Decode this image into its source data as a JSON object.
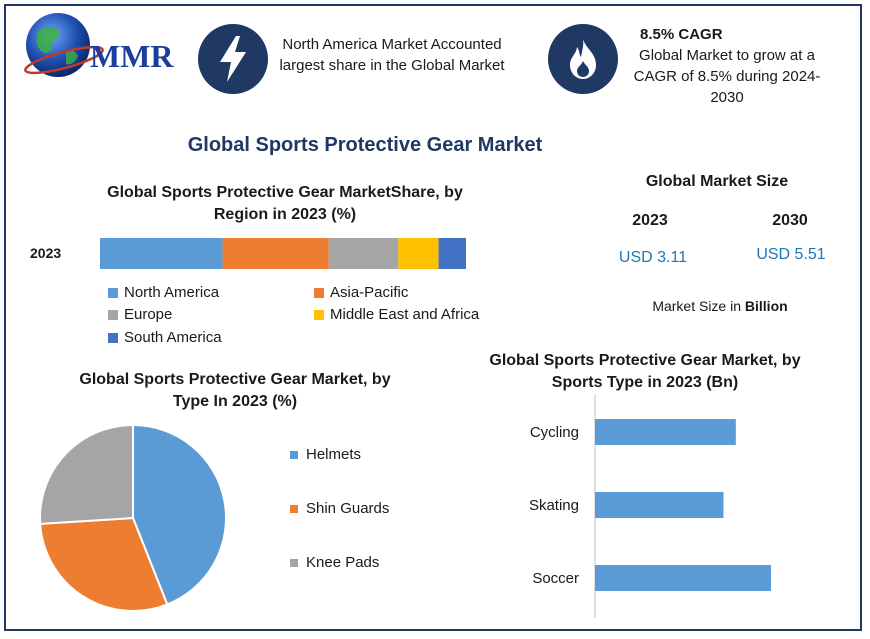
{
  "logo": {
    "text": "MMR"
  },
  "icons": {
    "info_left": "lightning-bolt-icon",
    "info_right": "flame-icon"
  },
  "info_left": {
    "text": "North America Market Accounted largest share in the Global Market"
  },
  "info_right": {
    "heading": "8.5% CAGR",
    "text": "Global Market to grow at a CAGR of 8.5% during 2024-2030"
  },
  "main_title": "Global Sports Protective Gear Market",
  "market_size": {
    "title": "Global Market Size",
    "year_a": "2023",
    "year_b": "2030",
    "value_a": "USD 3.11",
    "value_b": "USD 5.51",
    "unit_prefix": "Market Size in",
    "unit_bold": "Billion"
  },
  "colors": {
    "blue": "#4472c4",
    "lightblue": "#5b9bd5",
    "orange": "#ed7d31",
    "gray": "#a5a5a5",
    "gold": "#ffc000",
    "navy": "#1f3864"
  },
  "chart_data": [
    {
      "type": "bar",
      "orientation": "horizontal-stacked",
      "title": "Global Sports Protective Gear MarketShare, by Region in 2023 (%)",
      "categories": [
        "2023"
      ],
      "series": [
        {
          "name": "North America",
          "values": [
            33.5
          ],
          "color": "#5b9bd5"
        },
        {
          "name": "Asia-Pacific",
          "values": [
            29
          ],
          "color": "#ed7d31"
        },
        {
          "name": "Europe",
          "values": [
            19
          ],
          "color": "#a5a5a5"
        },
        {
          "name": "Middle East and Africa",
          "values": [
            11
          ],
          "color": "#ffc000"
        },
        {
          "name": "South America",
          "values": [
            7.5
          ],
          "color": "#4472c4"
        }
      ],
      "legend": "bottom"
    },
    {
      "type": "pie",
      "title": "Global Sports Protective Gear Market, by Type In 2023 (%)",
      "categories": [
        "Helmets",
        "Shin Guards",
        "Knee Pads"
      ],
      "values": [
        44,
        30,
        26
      ],
      "colors": [
        "#5b9bd5",
        "#ed7d31",
        "#a5a5a5"
      ],
      "legend": "right"
    },
    {
      "type": "bar",
      "orientation": "horizontal",
      "title": "Global Sports Protective Gear Market, by Sports Type in 2023 (Bn)",
      "categories": [
        "Cycling",
        "Skating",
        "Soccer"
      ],
      "values": [
        0.8,
        0.73,
        1.0
      ],
      "color": "#5b9bd5",
      "xlim": [
        0,
        1.25
      ]
    }
  ]
}
